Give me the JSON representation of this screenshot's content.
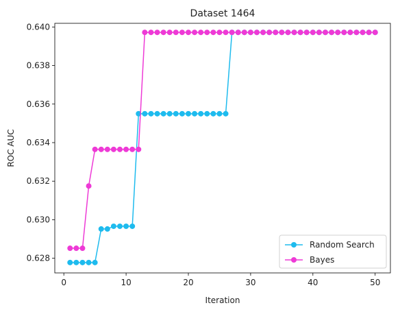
{
  "chart_data": {
    "type": "line",
    "title": "Dataset 1464",
    "xlabel": "Iteration",
    "ylabel": "ROC AUC",
    "xlim": [
      -1.45,
      52.45
    ],
    "ylim": [
      0.62724,
      0.64019
    ],
    "xticks": [
      0,
      10,
      20,
      30,
      40,
      50
    ],
    "xtick_labels": [
      "0",
      "10",
      "20",
      "30",
      "40",
      "50"
    ],
    "yticks": [
      0.628,
      0.63,
      0.632,
      0.634,
      0.636,
      0.638,
      0.64
    ],
    "ytick_labels": [
      "0.628",
      "0.630",
      "0.632",
      "0.634",
      "0.636",
      "0.638",
      "0.640"
    ],
    "grid": false,
    "legend_position": "lower-right",
    "series": [
      {
        "name": "Random Search",
        "color": "#1ebbee",
        "x": [
          1,
          2,
          3,
          4,
          5,
          6,
          7,
          8,
          9,
          10,
          11,
          12,
          13,
          14,
          15,
          16,
          17,
          18,
          19,
          20,
          21,
          22,
          23,
          24,
          25,
          26,
          27,
          28,
          29,
          30,
          31,
          32,
          33,
          34,
          35,
          36,
          37,
          38,
          39,
          40,
          41,
          42,
          43,
          44,
          45,
          46,
          47,
          48,
          49,
          50
        ],
        "y": [
          0.62778,
          0.62778,
          0.62778,
          0.62778,
          0.62778,
          0.62952,
          0.62952,
          0.62966,
          0.62966,
          0.62966,
          0.62966,
          0.6355,
          0.6355,
          0.6355,
          0.6355,
          0.6355,
          0.6355,
          0.6355,
          0.6355,
          0.6355,
          0.6355,
          0.6355,
          0.6355,
          0.6355,
          0.6355,
          0.6355,
          0.63972,
          0.63972,
          0.63972,
          0.63972,
          0.63972,
          0.63972,
          0.63972,
          0.63972,
          0.63972,
          0.63972,
          0.63972,
          0.63972,
          0.63972,
          0.63972,
          0.63972,
          0.63972,
          0.63972,
          0.63972,
          0.63972,
          0.63972,
          0.63972,
          0.63972,
          0.63972,
          0.63972
        ]
      },
      {
        "name": "Bayes",
        "color": "#ee3ad6",
        "x": [
          1,
          2,
          3,
          4,
          5,
          6,
          7,
          8,
          9,
          10,
          11,
          12,
          13,
          14,
          15,
          16,
          17,
          18,
          19,
          20,
          21,
          22,
          23,
          24,
          25,
          26,
          27,
          28,
          29,
          30,
          31,
          32,
          33,
          34,
          35,
          36,
          37,
          38,
          39,
          40,
          41,
          42,
          43,
          44,
          45,
          46,
          47,
          48,
          49,
          50
        ],
        "y": [
          0.62852,
          0.62852,
          0.62852,
          0.63175,
          0.63365,
          0.63365,
          0.63365,
          0.63365,
          0.63365,
          0.63365,
          0.63365,
          0.63365,
          0.63972,
          0.63972,
          0.63972,
          0.63972,
          0.63972,
          0.63972,
          0.63972,
          0.63972,
          0.63972,
          0.63972,
          0.63972,
          0.63972,
          0.63972,
          0.63972,
          0.63972,
          0.63972,
          0.63972,
          0.63972,
          0.63972,
          0.63972,
          0.63972,
          0.63972,
          0.63972,
          0.63972,
          0.63972,
          0.63972,
          0.63972,
          0.63972,
          0.63972,
          0.63972,
          0.63972,
          0.63972,
          0.63972,
          0.63972,
          0.63972,
          0.63972,
          0.63972,
          0.63972
        ]
      }
    ]
  }
}
